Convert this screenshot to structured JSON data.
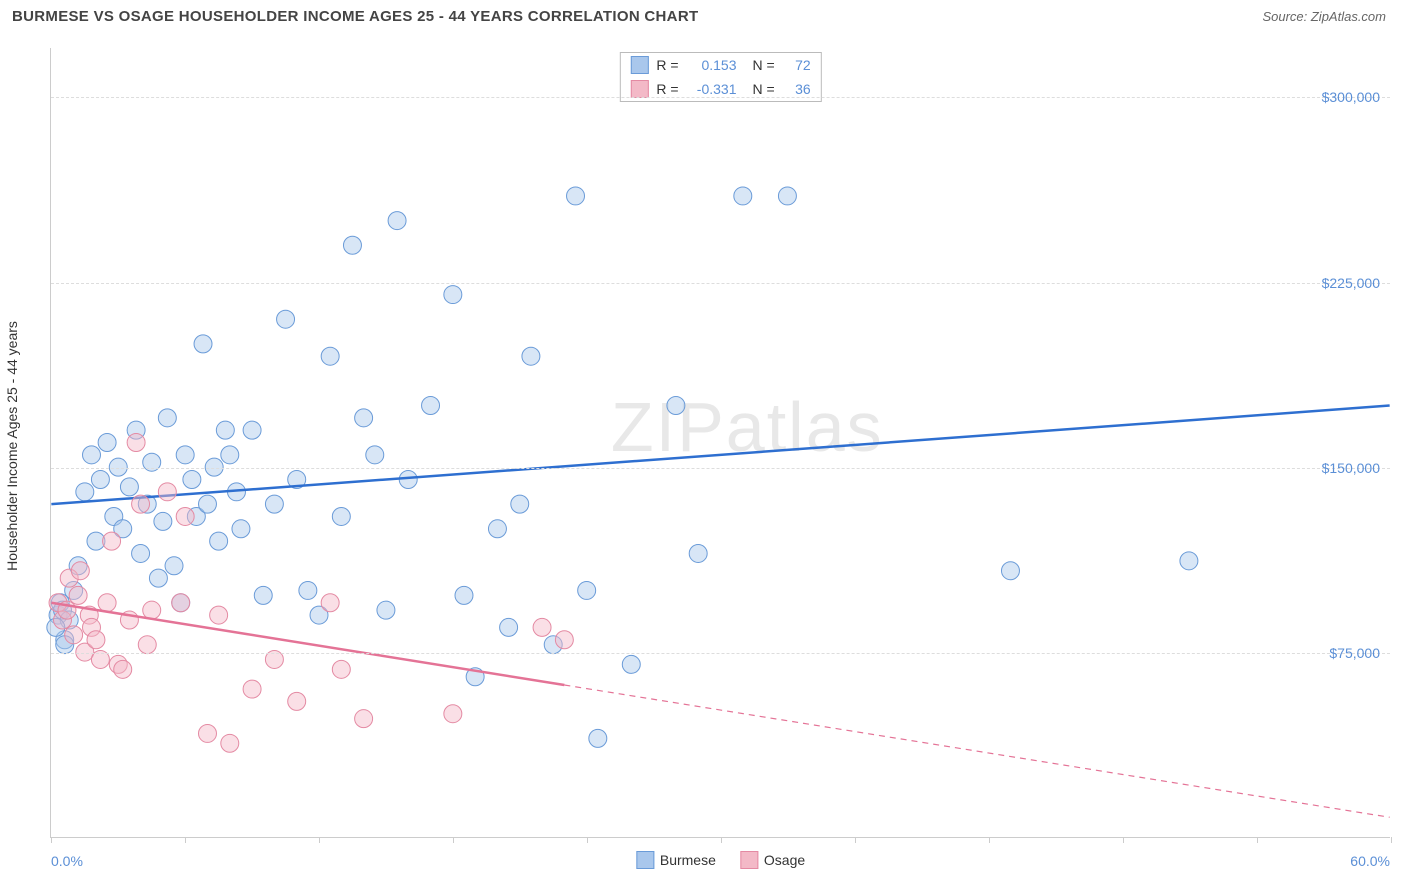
{
  "title": "BURMESE VS OSAGE HOUSEHOLDER INCOME AGES 25 - 44 YEARS CORRELATION CHART",
  "source_label": "Source: ",
  "source_name": "ZipAtlas.com",
  "watermark": "ZIPatlas",
  "chart": {
    "type": "scatter",
    "y_axis_title": "Householder Income Ages 25 - 44 years",
    "x_min": 0.0,
    "x_max": 60.0,
    "x_min_label": "0.0%",
    "x_max_label": "60.0%",
    "x_ticks_pct": [
      0,
      6,
      12,
      18,
      24,
      30,
      36,
      42,
      48,
      54,
      60
    ],
    "y_min": 0,
    "y_max": 320000,
    "y_gridlines": [
      {
        "value": 75000,
        "label": "$75,000"
      },
      {
        "value": 150000,
        "label": "$150,000"
      },
      {
        "value": 225000,
        "label": "$225,000"
      },
      {
        "value": 300000,
        "label": "$300,000"
      }
    ],
    "background_color": "#ffffff",
    "grid_color": "#dddddd",
    "axis_color": "#cccccc",
    "tick_label_color": "#5b8fd6",
    "marker_radius": 9,
    "marker_opacity": 0.45,
    "series": [
      {
        "name": "Burmese",
        "fill_color": "#a9c7ec",
        "stroke_color": "#6a9bd8",
        "line_color": "#2e6fd0",
        "line_width": 2.5,
        "R": "0.153",
        "N": "72",
        "trend": {
          "x1": 0,
          "y1": 135000,
          "x2": 60,
          "y2": 175000,
          "dash": null,
          "extrapolate_from_x": null
        },
        "points": [
          [
            0.3,
            90000
          ],
          [
            0.4,
            95000
          ],
          [
            0.5,
            92000
          ],
          [
            0.6,
            80000
          ],
          [
            0.8,
            88000
          ],
          [
            1.0,
            100000
          ],
          [
            1.2,
            110000
          ],
          [
            1.5,
            140000
          ],
          [
            1.8,
            155000
          ],
          [
            2.0,
            120000
          ],
          [
            2.2,
            145000
          ],
          [
            2.5,
            160000
          ],
          [
            2.8,
            130000
          ],
          [
            3.0,
            150000
          ],
          [
            3.2,
            125000
          ],
          [
            3.5,
            142000
          ],
          [
            3.8,
            165000
          ],
          [
            4.0,
            115000
          ],
          [
            4.3,
            135000
          ],
          [
            4.5,
            152000
          ],
          [
            4.8,
            105000
          ],
          [
            5.0,
            128000
          ],
          [
            5.2,
            170000
          ],
          [
            5.5,
            110000
          ],
          [
            5.8,
            95000
          ],
          [
            6.0,
            155000
          ],
          [
            6.3,
            145000
          ],
          [
            6.5,
            130000
          ],
          [
            6.8,
            200000
          ],
          [
            7.0,
            135000
          ],
          [
            7.3,
            150000
          ],
          [
            7.5,
            120000
          ],
          [
            7.8,
            165000
          ],
          [
            8.0,
            155000
          ],
          [
            8.3,
            140000
          ],
          [
            8.5,
            125000
          ],
          [
            9.0,
            165000
          ],
          [
            9.5,
            98000
          ],
          [
            10.0,
            135000
          ],
          [
            10.5,
            210000
          ],
          [
            11.0,
            145000
          ],
          [
            11.5,
            100000
          ],
          [
            12.0,
            90000
          ],
          [
            12.5,
            195000
          ],
          [
            13.0,
            130000
          ],
          [
            13.5,
            240000
          ],
          [
            14.0,
            170000
          ],
          [
            14.5,
            155000
          ],
          [
            15.0,
            92000
          ],
          [
            15.5,
            250000
          ],
          [
            16.0,
            145000
          ],
          [
            17.0,
            175000
          ],
          [
            18.0,
            220000
          ],
          [
            18.5,
            98000
          ],
          [
            19.0,
            65000
          ],
          [
            20.0,
            125000
          ],
          [
            20.5,
            85000
          ],
          [
            21.0,
            135000
          ],
          [
            21.5,
            195000
          ],
          [
            22.5,
            78000
          ],
          [
            23.5,
            260000
          ],
          [
            24.0,
            100000
          ],
          [
            24.5,
            40000
          ],
          [
            26.0,
            70000
          ],
          [
            28.0,
            175000
          ],
          [
            29.0,
            115000
          ],
          [
            31.0,
            260000
          ],
          [
            33.0,
            260000
          ],
          [
            43.0,
            108000
          ],
          [
            51.0,
            112000
          ],
          [
            0.2,
            85000
          ],
          [
            0.6,
            78000
          ]
        ]
      },
      {
        "name": "Osage",
        "fill_color": "#f3b9c7",
        "stroke_color": "#e48aa3",
        "line_color": "#e47396",
        "line_width": 2.5,
        "R": "-0.331",
        "N": "36",
        "trend": {
          "x1": 0,
          "y1": 95000,
          "x2": 60,
          "y2": 8000,
          "dash": "6,5",
          "extrapolate_from_x": 23
        },
        "points": [
          [
            0.3,
            95000
          ],
          [
            0.5,
            88000
          ],
          [
            0.7,
            92000
          ],
          [
            0.8,
            105000
          ],
          [
            1.0,
            82000
          ],
          [
            1.2,
            98000
          ],
          [
            1.3,
            108000
          ],
          [
            1.5,
            75000
          ],
          [
            1.7,
            90000
          ],
          [
            1.8,
            85000
          ],
          [
            2.0,
            80000
          ],
          [
            2.2,
            72000
          ],
          [
            2.5,
            95000
          ],
          [
            2.7,
            120000
          ],
          [
            3.0,
            70000
          ],
          [
            3.2,
            68000
          ],
          [
            3.5,
            88000
          ],
          [
            3.8,
            160000
          ],
          [
            4.0,
            135000
          ],
          [
            4.3,
            78000
          ],
          [
            4.5,
            92000
          ],
          [
            5.2,
            140000
          ],
          [
            5.8,
            95000
          ],
          [
            6.0,
            130000
          ],
          [
            7.0,
            42000
          ],
          [
            7.5,
            90000
          ],
          [
            8.0,
            38000
          ],
          [
            9.0,
            60000
          ],
          [
            10.0,
            72000
          ],
          [
            11.0,
            55000
          ],
          [
            12.5,
            95000
          ],
          [
            13.0,
            68000
          ],
          [
            14.0,
            48000
          ],
          [
            18.0,
            50000
          ],
          [
            22.0,
            85000
          ],
          [
            23.0,
            80000
          ]
        ]
      }
    ],
    "legend_top": {
      "R_label": "R =",
      "N_label": "N ="
    },
    "legend_bottom": [
      {
        "label": "Burmese",
        "fill": "#a9c7ec",
        "stroke": "#6a9bd8"
      },
      {
        "label": "Osage",
        "fill": "#f3b9c7",
        "stroke": "#e48aa3"
      }
    ]
  }
}
